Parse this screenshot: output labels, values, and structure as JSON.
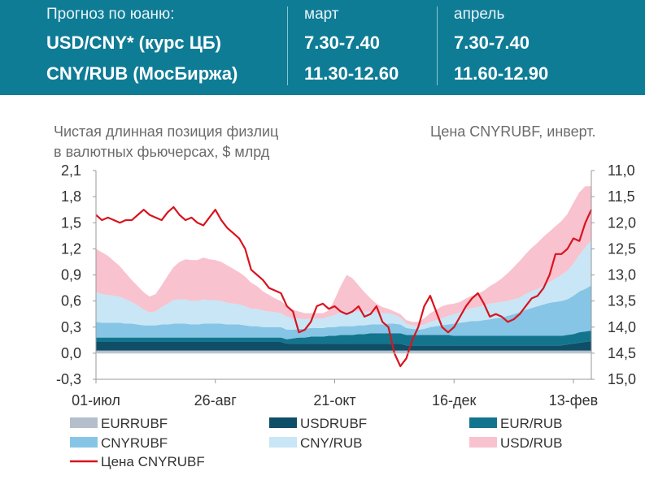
{
  "header": {
    "title": "Прогноз по юаню:",
    "months": [
      "март",
      "апрель"
    ],
    "rows": [
      {
        "label": "USD/CNY* (курс ЦБ)",
        "values": [
          "7.30-7.40",
          "7.30-7.40"
        ]
      },
      {
        "label": "CNY/RUB (МосБиржа)",
        "values": [
          "11.30-12.60",
          "11.60-12.90"
        ]
      }
    ],
    "colors": {
      "background": "#0f7c96",
      "text": "#ffffff"
    }
  },
  "chart_data": {
    "type": "area",
    "stacked": true,
    "left_axis_title": [
      "Чистая длинная позиция физлиц",
      "в валютных фьючерсах, $ млрд"
    ],
    "right_axis_title": "Цена CNYRUBF, инверт.",
    "x_tick_labels": [
      "01-июл",
      "26-авг",
      "21-окт",
      "16-дек",
      "13-фев"
    ],
    "x_tick_index": [
      0,
      20,
      40,
      60,
      80
    ],
    "ylim": [
      -0.3,
      2.1
    ],
    "y_ticks": [
      "2,1",
      "1,8",
      "1,5",
      "1,2",
      "0,9",
      "0,6",
      "0,3",
      "0,0",
      "-0,3"
    ],
    "y2lim": [
      11.0,
      15.0
    ],
    "y2_inverted": true,
    "y2_ticks": [
      "11,0",
      "11,5",
      "12,0",
      "12,5",
      "13,0",
      "13,5",
      "14,0",
      "14,5",
      "15,0"
    ],
    "grid": false,
    "legend_position": "bottom",
    "series": [
      {
        "name": "EURRUBF",
        "color": "#b4bfcb",
        "axis": "left",
        "values": [
          0.03,
          0.03,
          0.03,
          0.03,
          0.03,
          0.03,
          0.03,
          0.03,
          0.03,
          0.03,
          0.03,
          0.03,
          0.03,
          0.03,
          0.03,
          0.03,
          0.03,
          0.03,
          0.03,
          0.03,
          0.03,
          0.03,
          0.03,
          0.03,
          0.03,
          0.03,
          0.03,
          0.03,
          0.03,
          0.03,
          0.03,
          0.03,
          0.03,
          0.03,
          0.03,
          0.03,
          0.03,
          0.03,
          0.03,
          0.03,
          0.03,
          0.03,
          0.03,
          0.03,
          0.03,
          0.03,
          0.03,
          0.03,
          0.03,
          0.03,
          0.03,
          0.03,
          0.03,
          0.03,
          0.03,
          0.03,
          0.03,
          0.03,
          0.03,
          0.03,
          0.03,
          0.03,
          0.03,
          0.03,
          0.03,
          0.03,
          0.03,
          0.03,
          0.03,
          0.03,
          0.03,
          0.03,
          0.03,
          0.03,
          0.03,
          0.03,
          0.03,
          0.03,
          0.03,
          0.03,
          0.03,
          0.03,
          0.03,
          0.03
        ]
      },
      {
        "name": "USDRUBF",
        "color": "#0f4e67",
        "axis": "left",
        "values": [
          0.1,
          0.1,
          0.1,
          0.1,
          0.1,
          0.1,
          0.1,
          0.1,
          0.1,
          0.1,
          0.1,
          0.1,
          0.1,
          0.1,
          0.1,
          0.1,
          0.1,
          0.1,
          0.1,
          0.1,
          0.1,
          0.1,
          0.1,
          0.1,
          0.1,
          0.1,
          0.1,
          0.1,
          0.1,
          0.1,
          0.1,
          0.1,
          0.08,
          0.08,
          0.08,
          0.08,
          0.08,
          0.08,
          0.08,
          0.08,
          0.08,
          0.08,
          0.08,
          0.08,
          0.08,
          0.08,
          0.08,
          0.08,
          0.08,
          0.08,
          0.08,
          0.08,
          0.06,
          0.06,
          0.06,
          0.06,
          0.06,
          0.06,
          0.06,
          0.06,
          0.06,
          0.06,
          0.06,
          0.06,
          0.06,
          0.06,
          0.06,
          0.06,
          0.06,
          0.06,
          0.06,
          0.06,
          0.06,
          0.06,
          0.06,
          0.06,
          0.06,
          0.06,
          0.06,
          0.07,
          0.08,
          0.09,
          0.1,
          0.11
        ]
      },
      {
        "name": "EUR/RUB",
        "color": "#13758d",
        "axis": "left",
        "values": [
          0.05,
          0.05,
          0.05,
          0.05,
          0.05,
          0.05,
          0.05,
          0.05,
          0.05,
          0.05,
          0.05,
          0.05,
          0.05,
          0.05,
          0.05,
          0.05,
          0.05,
          0.05,
          0.05,
          0.05,
          0.05,
          0.05,
          0.05,
          0.05,
          0.05,
          0.05,
          0.05,
          0.05,
          0.05,
          0.05,
          0.05,
          0.05,
          0.05,
          0.06,
          0.07,
          0.07,
          0.08,
          0.08,
          0.08,
          0.09,
          0.09,
          0.1,
          0.1,
          0.1,
          0.11,
          0.11,
          0.12,
          0.12,
          0.12,
          0.12,
          0.12,
          0.12,
          0.12,
          0.12,
          0.12,
          0.12,
          0.12,
          0.12,
          0.12,
          0.12,
          0.11,
          0.11,
          0.11,
          0.11,
          0.11,
          0.11,
          0.11,
          0.11,
          0.11,
          0.11,
          0.11,
          0.11,
          0.11,
          0.11,
          0.11,
          0.11,
          0.11,
          0.11,
          0.11,
          0.11,
          0.11,
          0.12,
          0.12,
          0.12
        ]
      },
      {
        "name": "CNYRUBF",
        "color": "#86c5e5",
        "axis": "left",
        "values": [
          0.18,
          0.17,
          0.17,
          0.17,
          0.17,
          0.16,
          0.16,
          0.15,
          0.14,
          0.14,
          0.14,
          0.15,
          0.15,
          0.16,
          0.16,
          0.16,
          0.15,
          0.15,
          0.16,
          0.16,
          0.16,
          0.16,
          0.15,
          0.15,
          0.15,
          0.14,
          0.13,
          0.13,
          0.12,
          0.12,
          0.12,
          0.12,
          0.11,
          0.1,
          0.1,
          0.1,
          0.1,
          0.1,
          0.1,
          0.1,
          0.1,
          0.1,
          0.1,
          0.1,
          0.1,
          0.1,
          0.1,
          0.1,
          0.1,
          0.11,
          0.11,
          0.1,
          0.08,
          0.07,
          0.06,
          0.07,
          0.09,
          0.1,
          0.11,
          0.12,
          0.14,
          0.15,
          0.16,
          0.17,
          0.17,
          0.18,
          0.19,
          0.2,
          0.21,
          0.23,
          0.25,
          0.27,
          0.3,
          0.32,
          0.34,
          0.36,
          0.38,
          0.39,
          0.4,
          0.41,
          0.44,
          0.47,
          0.49,
          0.52
        ]
      },
      {
        "name": "CNY/RUB",
        "color": "#c8e6f5",
        "axis": "left",
        "values": [
          0.34,
          0.33,
          0.32,
          0.31,
          0.3,
          0.28,
          0.25,
          0.22,
          0.18,
          0.15,
          0.16,
          0.2,
          0.24,
          0.27,
          0.28,
          0.28,
          0.27,
          0.27,
          0.28,
          0.27,
          0.27,
          0.26,
          0.25,
          0.24,
          0.23,
          0.22,
          0.2,
          0.2,
          0.19,
          0.18,
          0.17,
          0.16,
          0.15,
          0.13,
          0.12,
          0.11,
          0.11,
          0.11,
          0.11,
          0.12,
          0.14,
          0.16,
          0.17,
          0.17,
          0.16,
          0.16,
          0.15,
          0.14,
          0.13,
          0.12,
          0.1,
          0.08,
          0.05,
          0.04,
          0.04,
          0.05,
          0.06,
          0.07,
          0.08,
          0.1,
          0.11,
          0.12,
          0.14,
          0.15,
          0.16,
          0.17,
          0.18,
          0.18,
          0.18,
          0.17,
          0.17,
          0.17,
          0.18,
          0.19,
          0.2,
          0.22,
          0.24,
          0.27,
          0.3,
          0.33,
          0.37,
          0.42,
          0.48,
          0.52
        ]
      },
      {
        "name": "USD/RUB",
        "color": "#f8c2cf",
        "axis": "left",
        "values": [
          0.5,
          0.48,
          0.45,
          0.4,
          0.35,
          0.3,
          0.25,
          0.22,
          0.2,
          0.18,
          0.2,
          0.25,
          0.32,
          0.38,
          0.43,
          0.46,
          0.47,
          0.47,
          0.48,
          0.47,
          0.46,
          0.45,
          0.43,
          0.4,
          0.37,
          0.34,
          0.3,
          0.26,
          0.22,
          0.19,
          0.16,
          0.14,
          0.12,
          0.1,
          0.08,
          0.07,
          0.06,
          0.06,
          0.06,
          0.07,
          0.18,
          0.3,
          0.42,
          0.38,
          0.3,
          0.22,
          0.15,
          0.1,
          0.07,
          0.05,
          0.04,
          0.04,
          0.04,
          0.04,
          0.05,
          0.07,
          0.1,
          0.12,
          0.14,
          0.13,
          0.12,
          0.12,
          0.13,
          0.14,
          0.15,
          0.17,
          0.2,
          0.23,
          0.27,
          0.32,
          0.37,
          0.42,
          0.46,
          0.5,
          0.53,
          0.56,
          0.58,
          0.6,
          0.62,
          0.65,
          0.7,
          0.72,
          0.7,
          0.62
        ]
      },
      {
        "name": "Цена CNYRUBF",
        "color": "#d8141e",
        "axis": "right",
        "type": "line",
        "values": [
          11.85,
          11.95,
          11.9,
          11.95,
          12.0,
          11.95,
          11.95,
          11.85,
          11.75,
          11.85,
          11.9,
          11.95,
          11.8,
          11.7,
          11.85,
          11.95,
          11.9,
          12.0,
          12.05,
          11.9,
          11.75,
          11.95,
          12.1,
          12.2,
          12.3,
          12.5,
          12.9,
          13.0,
          13.1,
          13.25,
          13.3,
          13.35,
          13.6,
          13.7,
          14.1,
          14.05,
          13.9,
          13.6,
          13.55,
          13.65,
          13.6,
          13.7,
          13.75,
          13.7,
          13.6,
          13.8,
          13.75,
          13.6,
          13.9,
          14.0,
          14.5,
          14.75,
          14.6,
          14.25,
          14.0,
          13.6,
          13.4,
          13.7,
          14.0,
          14.1,
          14.0,
          13.8,
          13.6,
          13.45,
          13.35,
          13.55,
          13.8,
          13.75,
          13.8,
          13.9,
          13.85,
          13.75,
          13.6,
          13.45,
          13.4,
          13.25,
          13.0,
          12.6,
          12.6,
          12.5,
          12.3,
          12.35,
          12.0,
          11.75
        ]
      }
    ]
  }
}
